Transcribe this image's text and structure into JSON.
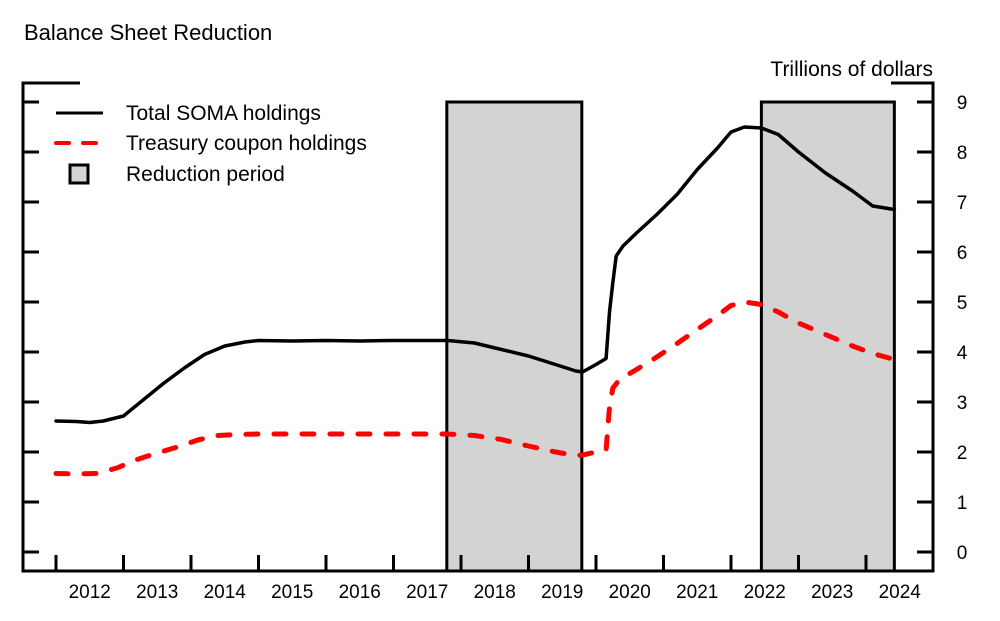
{
  "chart_data": {
    "type": "line",
    "title": "Balance Sheet Reduction",
    "ylabel": "Trillions of dollars",
    "xlabel": "",
    "xlim": [
      2011.5,
      2024.95
    ],
    "ylim": [
      -0.4,
      9.4
    ],
    "yticks": [
      0,
      1,
      2,
      3,
      4,
      5,
      6,
      7,
      8,
      9
    ],
    "ytick_labels": [
      "0",
      "1",
      "2",
      "3",
      "4",
      "5",
      "6",
      "7",
      "8",
      "9"
    ],
    "xticks": [
      2012,
      2013,
      2014,
      2015,
      2016,
      2017,
      2018,
      2019,
      2020,
      2021,
      2022,
      2023,
      2024
    ],
    "xtick_labels": [
      "2012",
      "2013",
      "2014",
      "2015",
      "2016",
      "2017",
      "2018",
      "2019",
      "2020",
      "2021",
      "2022",
      "2023",
      "2024"
    ],
    "grid": false,
    "legend": {
      "position": "top-left",
      "entries": [
        {
          "label": "Total SOMA holdings",
          "style": "solid",
          "color": "#000000"
        },
        {
          "label": "Treasury coupon holdings",
          "style": "dashed",
          "color": "#ff0000"
        },
        {
          "label": "Reduction period",
          "style": "box",
          "color": "#d3d3d3"
        }
      ]
    },
    "shaded_periods": [
      {
        "name": "Reduction period",
        "start": 2017.79,
        "end": 2019.79
      },
      {
        "name": "Reduction period",
        "start": 2022.45,
        "end": 2024.42
      }
    ],
    "series": [
      {
        "name": "Total SOMA holdings",
        "color": "#000000",
        "style": "solid",
        "x": [
          2012.0,
          2012.3,
          2012.5,
          2012.7,
          2013.0,
          2013.3,
          2013.6,
          2013.9,
          2014.2,
          2014.5,
          2014.8,
          2015.0,
          2015.5,
          2016.0,
          2016.5,
          2017.0,
          2017.5,
          2017.8,
          2018.2,
          2018.6,
          2019.0,
          2019.4,
          2019.7,
          2019.8,
          2020.0,
          2020.15,
          2020.2,
          2020.25,
          2020.3,
          2020.4,
          2020.6,
          2020.9,
          2021.2,
          2021.5,
          2021.8,
          2022.0,
          2022.2,
          2022.45,
          2022.7,
          2023.0,
          2023.4,
          2023.8,
          2024.1,
          2024.42
        ],
        "values": [
          2.62,
          2.61,
          2.59,
          2.62,
          2.72,
          3.05,
          3.38,
          3.68,
          3.95,
          4.12,
          4.2,
          4.23,
          4.22,
          4.23,
          4.22,
          4.23,
          4.23,
          4.23,
          4.18,
          4.05,
          3.92,
          3.75,
          3.62,
          3.6,
          3.75,
          3.87,
          4.8,
          5.4,
          5.92,
          6.12,
          6.38,
          6.75,
          7.15,
          7.65,
          8.08,
          8.4,
          8.5,
          8.48,
          8.35,
          8.0,
          7.58,
          7.22,
          6.92,
          6.85
        ]
      },
      {
        "name": "Treasury coupon holdings",
        "color": "#ff0000",
        "style": "dashed",
        "x": [
          2012.0,
          2012.3,
          2012.6,
          2012.9,
          2013.2,
          2013.5,
          2013.8,
          2014.1,
          2014.4,
          2014.7,
          2015.0,
          2015.5,
          2016.0,
          2016.5,
          2017.0,
          2017.5,
          2017.8,
          2018.2,
          2018.6,
          2019.0,
          2019.4,
          2019.7,
          2019.8,
          2020.0,
          2020.15,
          2020.2,
          2020.25,
          2020.35,
          2020.6,
          2020.9,
          2021.2,
          2021.5,
          2021.8,
          2022.0,
          2022.2,
          2022.45,
          2022.7,
          2023.0,
          2023.4,
          2023.8,
          2024.1,
          2024.42
        ],
        "values": [
          1.57,
          1.56,
          1.57,
          1.68,
          1.85,
          1.98,
          2.1,
          2.24,
          2.33,
          2.35,
          2.36,
          2.36,
          2.36,
          2.36,
          2.36,
          2.36,
          2.36,
          2.33,
          2.25,
          2.12,
          2.0,
          1.93,
          1.94,
          2.0,
          2.04,
          2.9,
          3.28,
          3.45,
          3.65,
          3.9,
          4.17,
          4.45,
          4.73,
          4.93,
          5.0,
          4.95,
          4.8,
          4.58,
          4.35,
          4.12,
          3.97,
          3.85
        ]
      }
    ]
  }
}
